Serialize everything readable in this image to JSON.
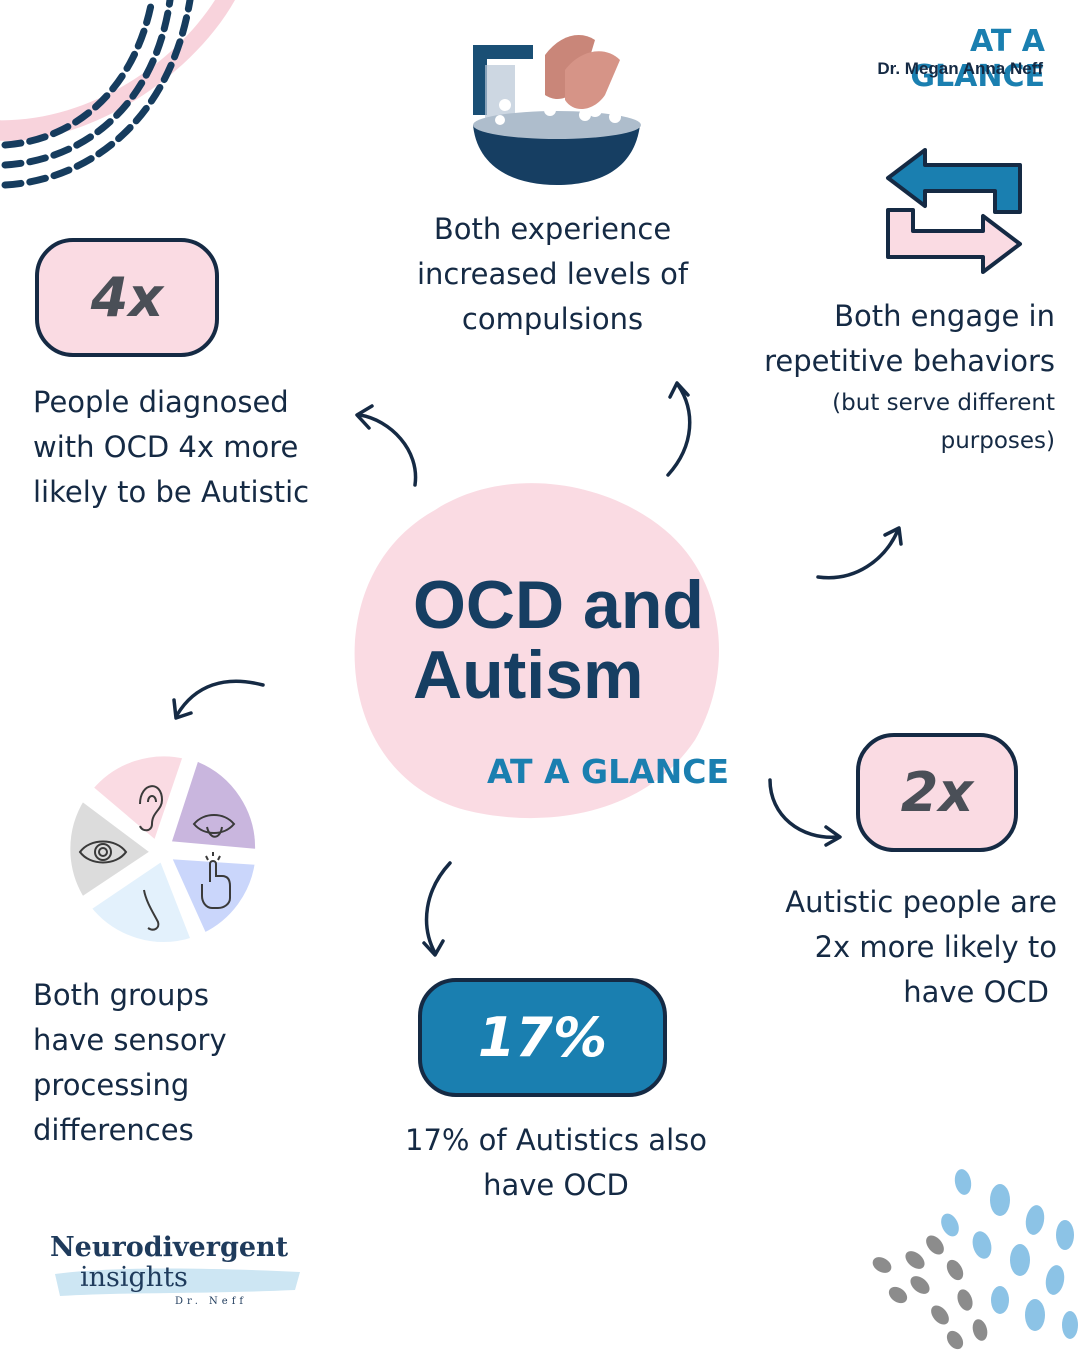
{
  "header": {
    "title": "AT A GLANCE",
    "author": "Dr. Megan Anna Neff"
  },
  "center": {
    "title_line1": "OCD and",
    "title_line2": "Autism",
    "subtitle": "AT A GLANCE"
  },
  "facts": {
    "compulsions": {
      "line1": "Both experience",
      "line2": "increased levels of",
      "line3": "compulsions"
    },
    "repetitive": {
      "line1": "Both engage in",
      "line2": "repetitive behaviors",
      "line3": "(but serve different",
      "line4": "purposes)"
    },
    "four_x": {
      "badge": "4x",
      "line1": "People diagnosed",
      "line2": "with OCD 4x more",
      "line3": "likely to be Autistic"
    },
    "two_x": {
      "badge": "2x",
      "line1": "Autistic people are",
      "line2": "2x more likely to",
      "line3": "have OCD"
    },
    "seventeen": {
      "badge": "17%",
      "line1": "17% of Autistics also",
      "line2": "have OCD"
    },
    "sensory": {
      "line1": "Both groups",
      "line2": "have sensory",
      "line3": "processing",
      "line4": "differences"
    }
  },
  "sensory_wheel_icons": [
    "ear-icon",
    "mouth-icon",
    "touch-icon",
    "nose-icon",
    "eye-icon"
  ],
  "logo": {
    "line1": "Neurodivergent",
    "line2": "insights",
    "line3": "Dr. Neff"
  },
  "colors": {
    "navy": "#152a44",
    "accent_blue": "#1a7fb0",
    "pink": "#fadbe3",
    "gray_text": "#4a4f57"
  }
}
